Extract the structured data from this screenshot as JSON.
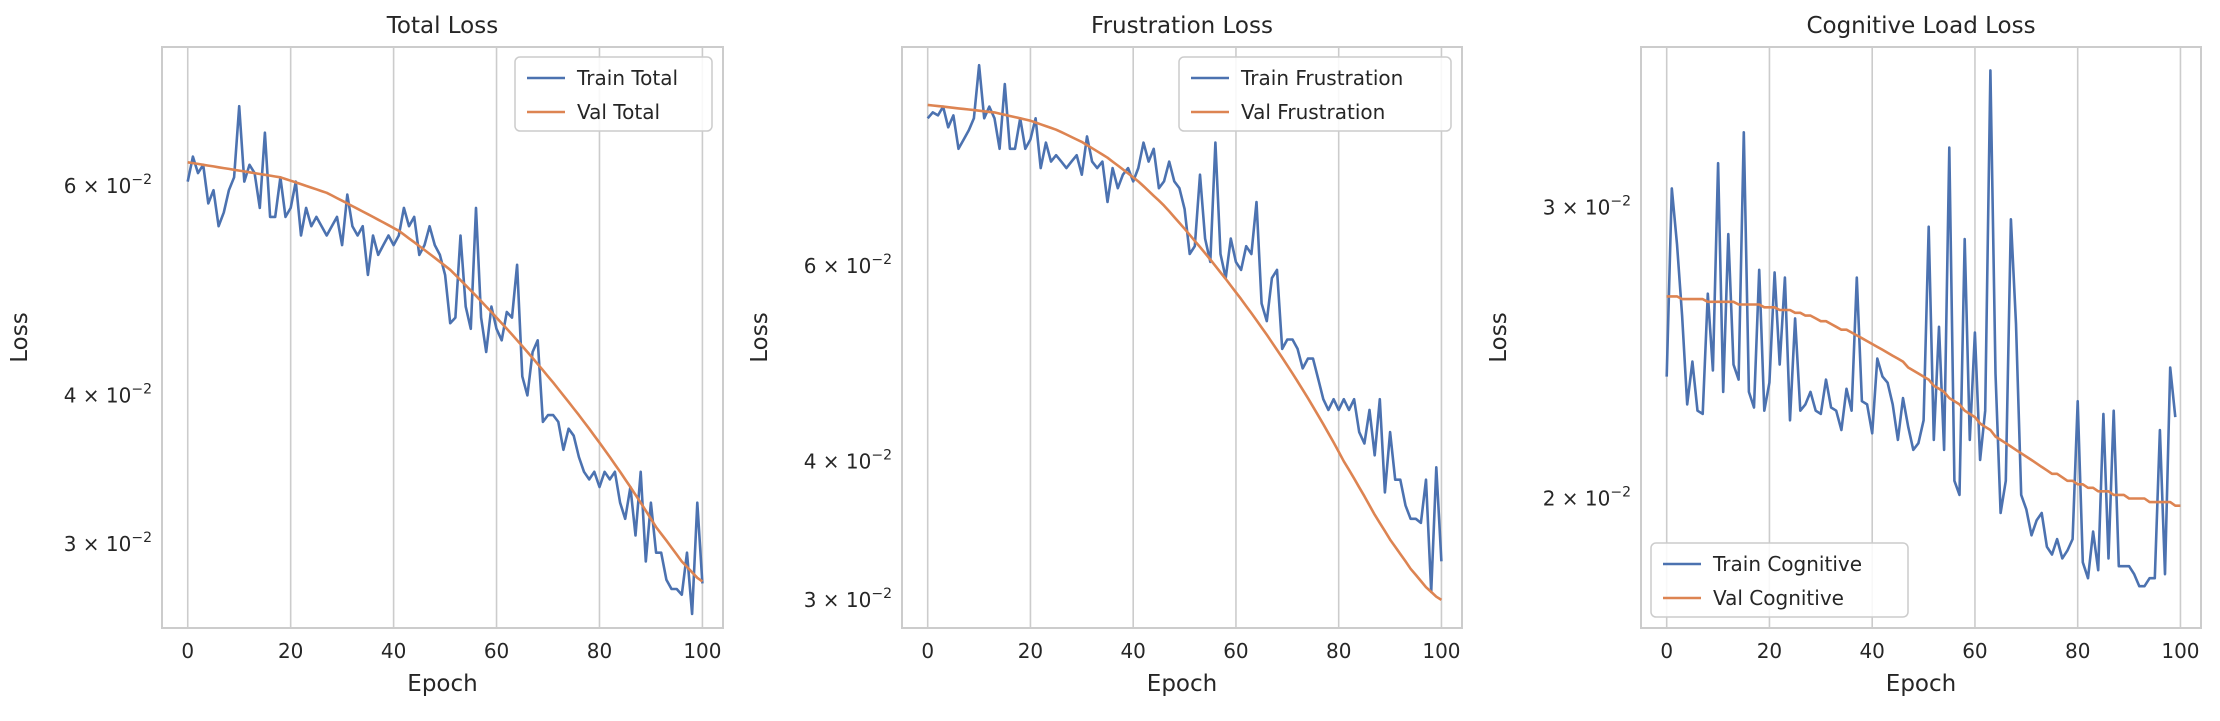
{
  "chart_data": [
    {
      "type": "line",
      "title": "Total Loss",
      "xlabel": "Epoch",
      "ylabel": "Loss",
      "yscale": "log",
      "xlim": [
        -5,
        104
      ],
      "ylim": [
        0.0255,
        0.0785
      ],
      "xticks": [
        0,
        20,
        40,
        60,
        80,
        100
      ],
      "xtick_labels": [
        "0",
        "20",
        "40",
        "60",
        "80",
        "100"
      ],
      "yticks": [
        {
          "value": 0.06,
          "mantissa": "6",
          "base": "10",
          "exp": "−2"
        },
        {
          "value": 0.04,
          "mantissa": "4",
          "base": "10",
          "exp": "−2"
        },
        {
          "value": 0.03,
          "mantissa": "3",
          "base": "10",
          "exp": "−2"
        }
      ],
      "grid": "x",
      "legend_position": "upper right",
      "series": [
        {
          "name": "Train Total",
          "color": "#4c72b0",
          "x_start": 0,
          "x_step": 1,
          "values": [
            0.0605,
            0.0635,
            0.0615,
            0.0625,
            0.058,
            0.0595,
            0.0555,
            0.057,
            0.0595,
            0.061,
            0.07,
            0.0605,
            0.0625,
            0.0615,
            0.0575,
            0.0665,
            0.0565,
            0.0565,
            0.061,
            0.0565,
            0.0575,
            0.0605,
            0.0545,
            0.0575,
            0.0555,
            0.0565,
            0.0555,
            0.0545,
            0.0555,
            0.0565,
            0.0535,
            0.059,
            0.0555,
            0.0545,
            0.0555,
            0.0505,
            0.0545,
            0.0525,
            0.0535,
            0.0545,
            0.0535,
            0.0545,
            0.0575,
            0.0555,
            0.0565,
            0.0525,
            0.0535,
            0.0555,
            0.0535,
            0.0525,
            0.0505,
            0.046,
            0.0465,
            0.0545,
            0.0475,
            0.0455,
            0.0575,
            0.0465,
            0.0435,
            0.0475,
            0.0455,
            0.0445,
            0.047,
            0.0465,
            0.0515,
            0.0415,
            0.04,
            0.0435,
            0.0445,
            0.038,
            0.0385,
            0.0385,
            0.038,
            0.036,
            0.0375,
            0.037,
            0.0355,
            0.0345,
            0.034,
            0.0345,
            0.0335,
            0.0345,
            0.034,
            0.0345,
            0.0325,
            0.0315,
            0.0335,
            0.0305,
            0.0345,
            0.029,
            0.0325,
            0.0295,
            0.0295,
            0.028,
            0.0275,
            0.0275,
            0.0272,
            0.0295,
            0.0262,
            0.0325,
            0.0278
          ]
        },
        {
          "name": "Val Total",
          "color": "#dd8452",
          "x_start": 0,
          "x_step": 1,
          "values": [
            0.0628,
            0.0627,
            0.0626,
            0.0625,
            0.0624,
            0.0623,
            0.0622,
            0.0621,
            0.062,
            0.0619,
            0.0618,
            0.0617,
            0.0616,
            0.0615,
            0.0614,
            0.0613,
            0.0612,
            0.0611,
            0.061,
            0.0608,
            0.0606,
            0.0604,
            0.0602,
            0.06,
            0.0598,
            0.0596,
            0.0594,
            0.0592,
            0.0589,
            0.0586,
            0.0583,
            0.058,
            0.0577,
            0.0574,
            0.0571,
            0.0568,
            0.0565,
            0.0562,
            0.0559,
            0.0556,
            0.0553,
            0.055,
            0.0546,
            0.0542,
            0.0538,
            0.0534,
            0.053,
            0.0526,
            0.0522,
            0.0518,
            0.0514,
            0.051,
            0.0505,
            0.05,
            0.0495,
            0.049,
            0.0485,
            0.048,
            0.0475,
            0.047,
            0.0465,
            0.046,
            0.0455,
            0.045,
            0.0445,
            0.044,
            0.0435,
            0.043,
            0.0425,
            0.042,
            0.0415,
            0.041,
            0.0405,
            0.04,
            0.0395,
            0.039,
            0.0385,
            0.038,
            0.0375,
            0.037,
            0.0365,
            0.036,
            0.0355,
            0.035,
            0.0345,
            0.034,
            0.0335,
            0.033,
            0.0325,
            0.032,
            0.0315,
            0.031,
            0.0306,
            0.0302,
            0.0298,
            0.0294,
            0.029,
            0.0287,
            0.0284,
            0.0281,
            0.0279
          ]
        }
      ]
    },
    {
      "type": "line",
      "title": "Frustration Loss",
      "xlabel": "Epoch",
      "ylabel": "Loss",
      "yscale": "log",
      "xlim": [
        -5,
        104
      ],
      "ylim": [
        0.0283,
        0.0945
      ],
      "xticks": [
        0,
        20,
        40,
        60,
        80,
        100
      ],
      "xtick_labels": [
        "0",
        "20",
        "40",
        "60",
        "80",
        "100"
      ],
      "yticks": [
        {
          "value": 0.06,
          "mantissa": "6",
          "base": "10",
          "exp": "−2"
        },
        {
          "value": 0.04,
          "mantissa": "4",
          "base": "10",
          "exp": "−2"
        },
        {
          "value": 0.03,
          "mantissa": "3",
          "base": "10",
          "exp": "−2"
        }
      ],
      "grid": "x",
      "legend_position": "upper right",
      "series": [
        {
          "name": "Train Frustration",
          "color": "#4c72b0",
          "x_start": 0,
          "x_step": 1,
          "values": [
            0.0815,
            0.0825,
            0.082,
            0.0835,
            0.08,
            0.082,
            0.0765,
            0.078,
            0.0795,
            0.0815,
            0.091,
            0.0815,
            0.0835,
            0.0815,
            0.0765,
            0.0875,
            0.0765,
            0.0765,
            0.0815,
            0.0765,
            0.078,
            0.0815,
            0.0735,
            0.0775,
            0.0745,
            0.0755,
            0.0745,
            0.0735,
            0.0745,
            0.0755,
            0.0725,
            0.0785,
            0.0745,
            0.0735,
            0.0745,
            0.0685,
            0.0735,
            0.0705,
            0.0725,
            0.0735,
            0.0715,
            0.0735,
            0.0775,
            0.0745,
            0.0765,
            0.0705,
            0.0715,
            0.0745,
            0.0715,
            0.0705,
            0.0675,
            0.0615,
            0.0625,
            0.0725,
            0.0635,
            0.0605,
            0.0775,
            0.0615,
            0.0585,
            0.0635,
            0.0605,
            0.0595,
            0.0625,
            0.0615,
            0.0685,
            0.0555,
            0.0535,
            0.0585,
            0.0595,
            0.0505,
            0.0515,
            0.0515,
            0.0505,
            0.0485,
            0.0495,
            0.0495,
            0.0475,
            0.0455,
            0.0445,
            0.0455,
            0.0445,
            0.0455,
            0.0445,
            0.0455,
            0.0425,
            0.0415,
            0.0445,
            0.0405,
            0.0455,
            0.0375,
            0.0425,
            0.0385,
            0.0385,
            0.0365,
            0.0355,
            0.0355,
            0.0352,
            0.0385,
            0.0305,
            0.0395,
            0.0325
          ]
        },
        {
          "name": "Val Frustration",
          "color": "#dd8452",
          "x_start": 0,
          "x_step": 1,
          "values": [
            0.0838,
            0.0837,
            0.0836,
            0.0835,
            0.0834,
            0.0833,
            0.0832,
            0.0831,
            0.083,
            0.0829,
            0.0828,
            0.0827,
            0.0826,
            0.0825,
            0.0823,
            0.0821,
            0.0819,
            0.0817,
            0.0815,
            0.0813,
            0.0811,
            0.0808,
            0.0805,
            0.0802,
            0.0799,
            0.0796,
            0.0792,
            0.0788,
            0.0784,
            0.078,
            0.0776,
            0.0771,
            0.0766,
            0.0761,
            0.0756,
            0.0751,
            0.0745,
            0.0739,
            0.0733,
            0.0727,
            0.0721,
            0.0715,
            0.0708,
            0.0701,
            0.0694,
            0.0687,
            0.068,
            0.0672,
            0.0664,
            0.0656,
            0.0648,
            0.064,
            0.0632,
            0.0624,
            0.0616,
            0.0608,
            0.06,
            0.0592,
            0.0584,
            0.0576,
            0.0568,
            0.056,
            0.0552,
            0.0544,
            0.0536,
            0.0528,
            0.052,
            0.0512,
            0.0504,
            0.0496,
            0.0488,
            0.048,
            0.0472,
            0.0464,
            0.0456,
            0.0448,
            0.044,
            0.0432,
            0.0424,
            0.0416,
            0.0408,
            0.04,
            0.0393,
            0.0386,
            0.0379,
            0.0372,
            0.0365,
            0.0358,
            0.0352,
            0.0346,
            0.034,
            0.0335,
            0.033,
            0.0325,
            0.032,
            0.0316,
            0.0312,
            0.0308,
            0.0305,
            0.0302,
            0.03
          ]
        }
      ]
    },
    {
      "type": "line",
      "title": "Cognitive Load Loss",
      "xlabel": "Epoch",
      "ylabel": "Loss",
      "yscale": "log",
      "xlim": [
        -5,
        104
      ],
      "ylim": [
        0.0167,
        0.0375
      ],
      "xticks": [
        0,
        20,
        40,
        60,
        80,
        100
      ],
      "xtick_labels": [
        "0",
        "20",
        "40",
        "60",
        "80",
        "100"
      ],
      "yticks": [
        {
          "value": 0.03,
          "mantissa": "3",
          "base": "10",
          "exp": "−2"
        },
        {
          "value": 0.02,
          "mantissa": "2",
          "base": "10",
          "exp": "−2"
        }
      ],
      "grid": "x",
      "legend_position": "lower left",
      "series": [
        {
          "name": "Train Cognitive",
          "color": "#4c72b0",
          "x_start": 0,
          "x_step": 1,
          "values": [
            0.0237,
            0.0308,
            0.0285,
            0.0258,
            0.0228,
            0.0242,
            0.0226,
            0.0225,
            0.0266,
            0.0239,
            0.0319,
            0.0232,
            0.0289,
            0.0241,
            0.0236,
            0.0333,
            0.0232,
            0.0227,
            0.0275,
            0.0226,
            0.0235,
            0.0274,
            0.0241,
            0.0272,
            0.0223,
            0.0257,
            0.0226,
            0.0228,
            0.0232,
            0.0226,
            0.0225,
            0.0236,
            0.0227,
            0.0226,
            0.022,
            0.0233,
            0.0226,
            0.0272,
            0.0229,
            0.0228,
            0.0219,
            0.0243,
            0.0237,
            0.0235,
            0.0228,
            0.0217,
            0.023,
            0.0221,
            0.0214,
            0.0216,
            0.0223,
            0.0292,
            0.0217,
            0.0254,
            0.0214,
            0.0326,
            0.0205,
            0.0201,
            0.0287,
            0.0217,
            0.0252,
            0.0211,
            0.0226,
            0.0363,
            0.0238,
            0.0196,
            0.0205,
            0.0295,
            0.0255,
            0.0201,
            0.0197,
            0.019,
            0.0194,
            0.0196,
            0.0187,
            0.0185,
            0.0189,
            0.0184,
            0.0186,
            0.0189,
            0.0229,
            0.0183,
            0.0179,
            0.0191,
            0.0181,
            0.0225,
            0.0184,
            0.0226,
            0.0182,
            0.0182,
            0.0182,
            0.018,
            0.0177,
            0.0177,
            0.0179,
            0.0179,
            0.022,
            0.018,
            0.024,
            0.0224
          ]
        },
        {
          "name": "Val Cognitive",
          "color": "#dd8452",
          "x_start": 0,
          "x_step": 1,
          "values": [
            0.0265,
            0.0265,
            0.0265,
            0.0264,
            0.0264,
            0.0264,
            0.0264,
            0.0264,
            0.0263,
            0.0263,
            0.0263,
            0.0263,
            0.0263,
            0.0263,
            0.0262,
            0.0262,
            0.0262,
            0.0262,
            0.0262,
            0.0261,
            0.0261,
            0.0261,
            0.026,
            0.026,
            0.026,
            0.0259,
            0.0259,
            0.0258,
            0.0258,
            0.0257,
            0.0256,
            0.0256,
            0.0255,
            0.0254,
            0.0253,
            0.0253,
            0.0252,
            0.0251,
            0.025,
            0.0249,
            0.0248,
            0.0247,
            0.0246,
            0.0245,
            0.0244,
            0.0243,
            0.0242,
            0.024,
            0.0239,
            0.0238,
            0.0237,
            0.0236,
            0.0234,
            0.0233,
            0.0232,
            0.023,
            0.0229,
            0.0228,
            0.0226,
            0.0225,
            0.0224,
            0.0222,
            0.0221,
            0.022,
            0.0218,
            0.0217,
            0.0216,
            0.0215,
            0.0214,
            0.0213,
            0.0212,
            0.0211,
            0.021,
            0.0209,
            0.0208,
            0.0207,
            0.0207,
            0.0206,
            0.0205,
            0.0205,
            0.0204,
            0.0204,
            0.0203,
            0.0203,
            0.0202,
            0.0202,
            0.0202,
            0.0201,
            0.0201,
            0.0201,
            0.02,
            0.02,
            0.02,
            0.02,
            0.0199,
            0.0199,
            0.0199,
            0.0199,
            0.0199,
            0.0198,
            0.0198
          ]
        }
      ]
    }
  ]
}
